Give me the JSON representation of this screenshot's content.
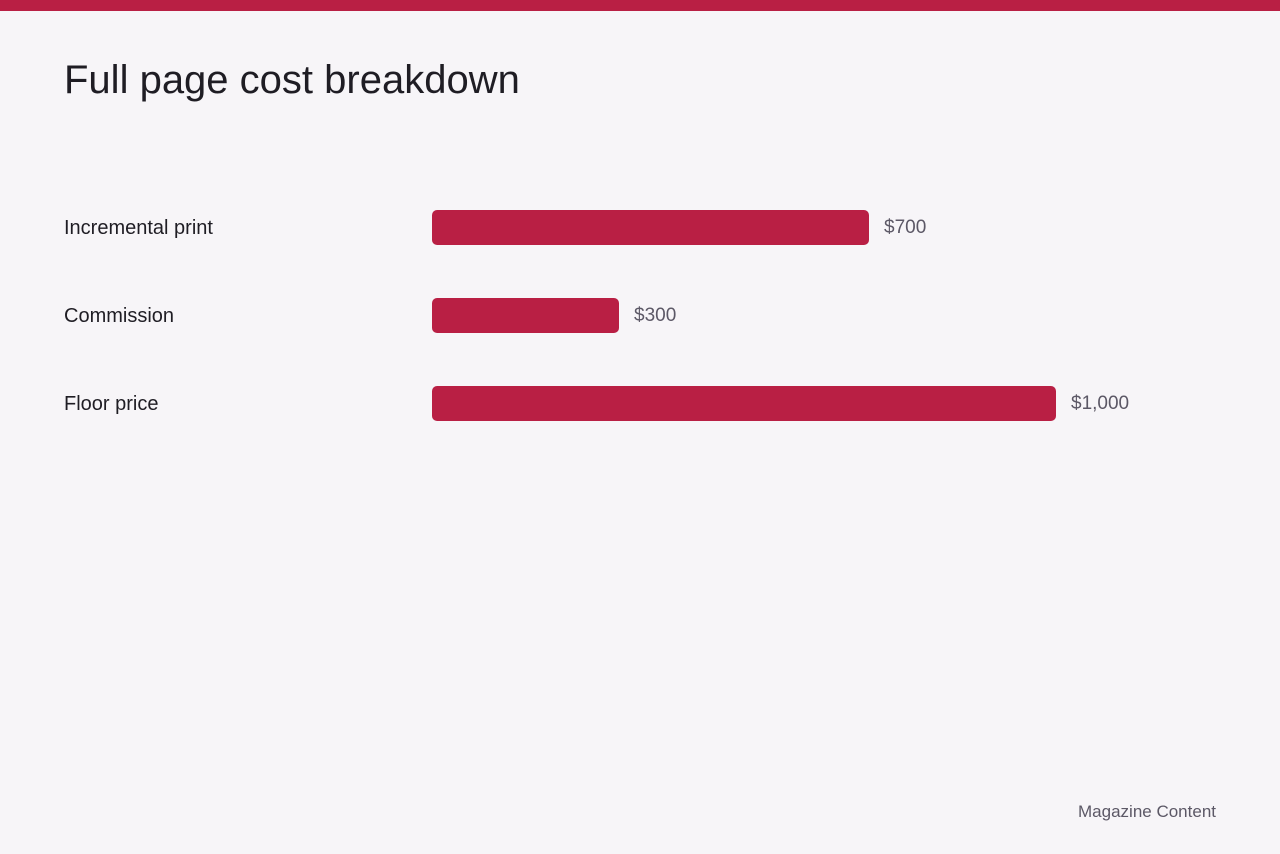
{
  "colors": {
    "accent": "#b91f44",
    "background": "#f7f5f8",
    "text": "#1f1d24",
    "muted_text": "#5c5866"
  },
  "chart_data": {
    "type": "bar",
    "orientation": "horizontal",
    "title": "Full page cost breakdown",
    "categories": [
      "Incremental print",
      "Commission",
      "Floor price"
    ],
    "values": [
      700,
      300,
      1000
    ],
    "value_labels": [
      "$700",
      "$300",
      "$1,000"
    ],
    "xlabel": "",
    "ylabel": "",
    "xlim": [
      0,
      1000
    ],
    "grid": false,
    "legend": "none"
  },
  "footer": {
    "source": "Magazine Content"
  }
}
